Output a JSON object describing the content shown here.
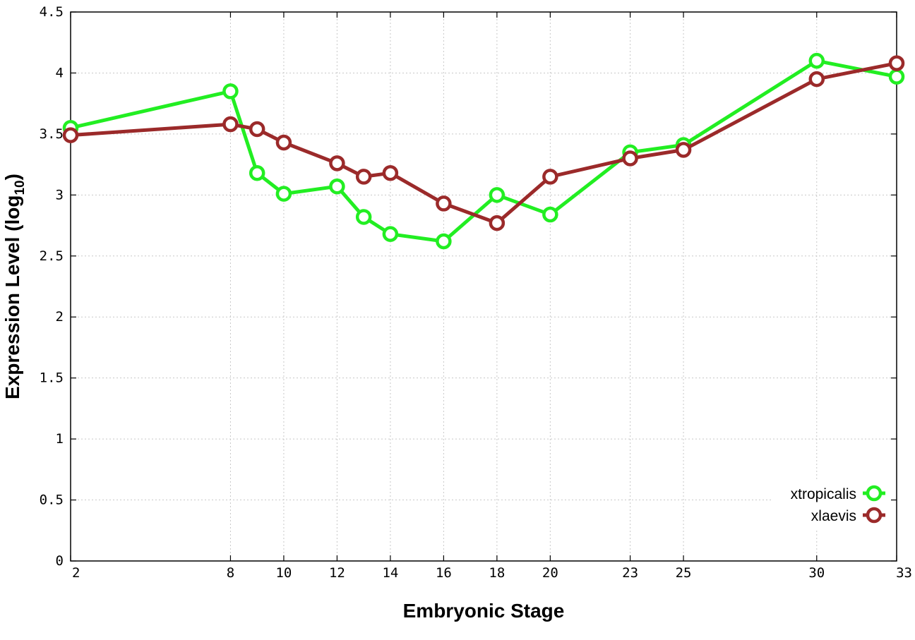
{
  "chart_data": {
    "type": "line",
    "title": "",
    "xlabel": "Embryonic Stage",
    "ylabel_main": "Expression Level (log",
    "ylabel_sub": "10",
    "ylabel_close": ")",
    "xlim": [
      2,
      33
    ],
    "ylim": [
      0,
      4.5
    ],
    "x_ticks": [
      2,
      8,
      10,
      12,
      14,
      16,
      18,
      20,
      23,
      25,
      30,
      33
    ],
    "x_tick_labels": [
      "2",
      "8",
      "10",
      "12",
      "14",
      "16",
      "18",
      "20",
      "23",
      "25",
      "30",
      "33"
    ],
    "y_ticks": [
      0,
      0.5,
      1,
      1.5,
      2,
      2.5,
      3,
      3.5,
      4,
      4.5
    ],
    "y_tick_labels": [
      "0",
      "0.5",
      "1",
      "1.5",
      "2",
      "2.5",
      "3",
      "3.5",
      "4",
      "4.5"
    ],
    "grid": true,
    "legend_position": "bottom-right",
    "series": [
      {
        "name": "xtropicalis",
        "color": "#22ee22",
        "marker": "open-circle",
        "points": [
          [
            2,
            3.55
          ],
          [
            8,
            3.85
          ],
          [
            9,
            3.18
          ],
          [
            10,
            3.01
          ],
          [
            12,
            3.07
          ],
          [
            13,
            2.82
          ],
          [
            14,
            2.68
          ],
          [
            16,
            2.62
          ],
          [
            18,
            3.0
          ],
          [
            20,
            2.84
          ],
          [
            23,
            3.35
          ],
          [
            25,
            3.41
          ],
          [
            30,
            4.1
          ],
          [
            33,
            3.97
          ]
        ]
      },
      {
        "name": "xlaevis",
        "color": "#9b2a2a",
        "marker": "open-circle",
        "points": [
          [
            2,
            3.49
          ],
          [
            8,
            3.58
          ],
          [
            9,
            3.54
          ],
          [
            10,
            3.43
          ],
          [
            12,
            3.26
          ],
          [
            13,
            3.15
          ],
          [
            14,
            3.18
          ],
          [
            16,
            2.93
          ],
          [
            18,
            2.77
          ],
          [
            20,
            3.15
          ],
          [
            23,
            3.3
          ],
          [
            25,
            3.37
          ],
          [
            30,
            3.95
          ],
          [
            33,
            4.08
          ]
        ]
      }
    ]
  }
}
